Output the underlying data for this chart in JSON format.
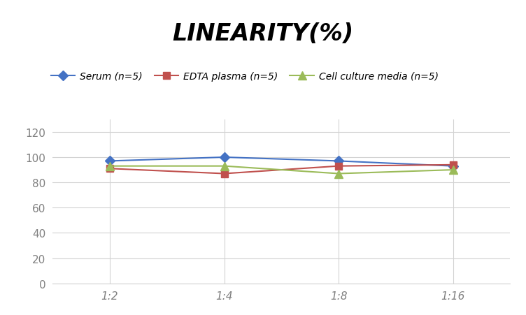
{
  "title": "LINEARITY(%)",
  "title_fontsize": 24,
  "title_style": "italic",
  "title_weight": "bold",
  "x_labels": [
    "1:2",
    "1:4",
    "1:8",
    "1:16"
  ],
  "x_positions": [
    0,
    1,
    2,
    3
  ],
  "series": [
    {
      "label": "Serum (n=5)",
      "values": [
        97,
        100,
        97,
        93
      ],
      "color": "#4472C4",
      "marker": "D",
      "markersize": 7,
      "linewidth": 1.5
    },
    {
      "label": "EDTA plasma (n=5)",
      "values": [
        91,
        87,
        93,
        94
      ],
      "color": "#C0504D",
      "marker": "s",
      "markersize": 7,
      "linewidth": 1.5
    },
    {
      "label": "Cell culture media (n=5)",
      "values": [
        93,
        93,
        87,
        90
      ],
      "color": "#9BBB59",
      "marker": "^",
      "markersize": 8,
      "linewidth": 1.5
    }
  ],
  "ylim": [
    0,
    130
  ],
  "yticks": [
    0,
    20,
    40,
    60,
    80,
    100,
    120
  ],
  "background_color": "#ffffff",
  "grid_color": "#d3d3d3",
  "legend_fontsize": 10,
  "tick_fontsize": 11
}
